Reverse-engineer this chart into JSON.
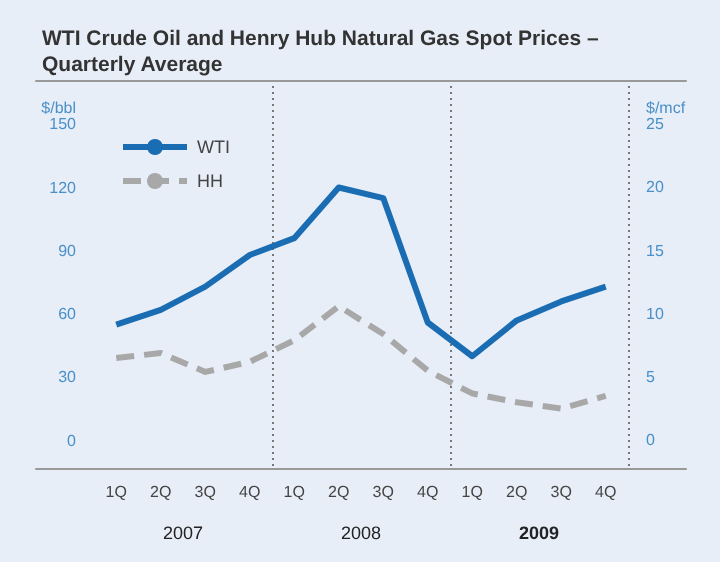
{
  "chart_data": {
    "type": "line",
    "title": "WTI Crude Oil and Henry Hub Natural Gas Spot Prices – Quarterly Average",
    "categories": [
      "1Q",
      "2Q",
      "3Q",
      "4Q",
      "1Q",
      "2Q",
      "3Q",
      "4Q",
      "1Q",
      "2Q",
      "3Q",
      "4Q"
    ],
    "series": [
      {
        "name": "WTI",
        "color": "#1a6db3",
        "line_style": "solid",
        "values": [
          55,
          62,
          73,
          88,
          96,
          120,
          115,
          56,
          40,
          57,
          66,
          73
        ]
      },
      {
        "name": "HH",
        "color": "#a8a8a8",
        "line_style": "dashed",
        "axis": "y2",
        "values": [
          6.5,
          6.9,
          5.4,
          6.2,
          7.9,
          10.6,
          8.4,
          5.5,
          3.7,
          3.0,
          2.5,
          3.5
        ]
      }
    ],
    "ylabel": "$/bbl",
    "y2label": "$/mcf",
    "ylim": [
      -13,
      171
    ],
    "yticks": [
      0,
      30,
      60,
      90,
      120,
      150
    ],
    "y2lim": [
      -2.2,
      28.5
    ],
    "y2ticks": [
      0,
      5,
      10,
      15,
      20,
      25
    ],
    "annotations": [
      "2007",
      "2008",
      "2009"
    ],
    "marker": "none",
    "grid": false,
    "legend": "top left"
  }
}
